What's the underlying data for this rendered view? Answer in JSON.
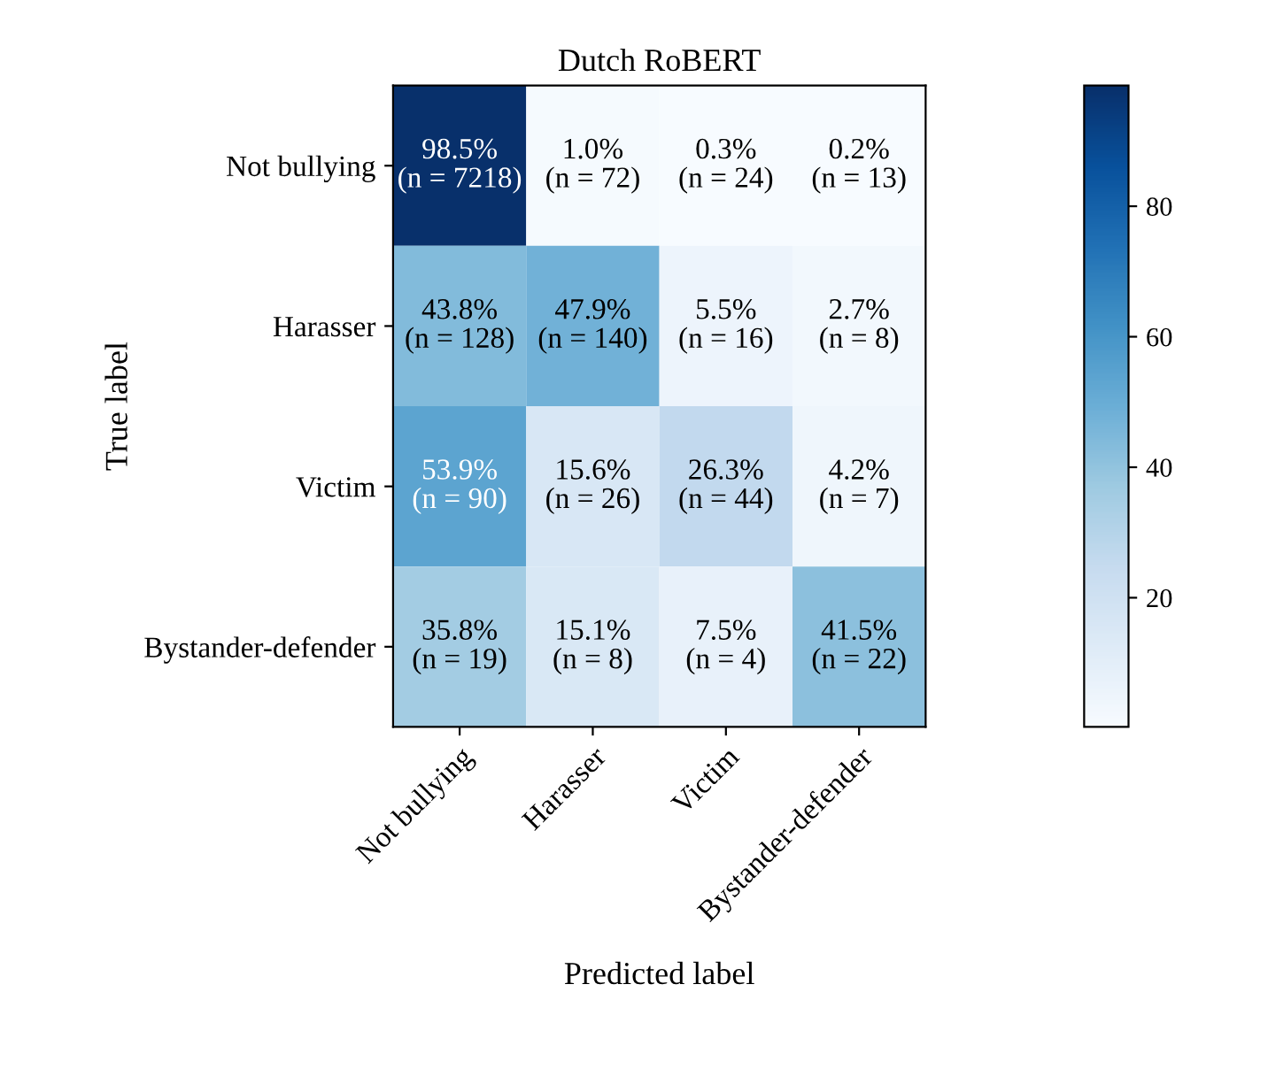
{
  "chart_data": {
    "type": "heatmap",
    "title": "Dutch RoBERT",
    "xlabel": "Predicted label",
    "ylabel": "True label",
    "categories": [
      "Not bullying",
      "Harasser",
      "Victim",
      "Bystander-defender"
    ],
    "y_categories": [
      "Not bullying",
      "Harasser",
      "Victim",
      "Bystander-defender"
    ],
    "cells": [
      [
        98.5,
        1.0,
        0.3,
        0.2
      ],
      [
        43.8,
        47.9,
        5.5,
        2.7
      ],
      [
        53.9,
        15.6,
        26.3,
        4.2
      ],
      [
        35.8,
        15.1,
        7.5,
        41.5
      ]
    ],
    "cell_labels": [
      [
        "98.5%\n(n = 7218)",
        "1.0%\n(n = 72)",
        "0.3%\n(n = 24)",
        "0.2%\n(n = 13)"
      ],
      [
        "43.8%\n(n = 128)",
        "47.9%\n(n = 140)",
        "5.5%\n(n = 16)",
        "2.7%\n(n = 8)"
      ],
      [
        "53.9%\n(n = 90)",
        "15.6%\n(n = 26)",
        "26.3%\n(n = 44)",
        "4.2%\n(n = 7)"
      ],
      [
        "35.8%\n(n = 19)",
        "15.1%\n(n = 8)",
        "7.5%\n(n = 4)",
        "41.5%\n(n = 22)"
      ]
    ],
    "clim": [
      0.2,
      98.5
    ],
    "cticks": [
      20,
      40,
      60,
      80
    ]
  }
}
